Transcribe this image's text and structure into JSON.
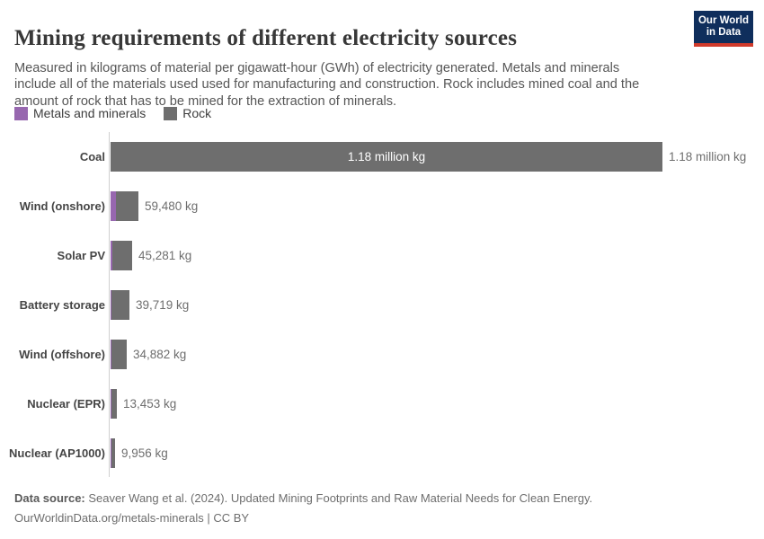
{
  "header": {
    "title": "Mining requirements of different electricity sources",
    "subtitle": "Measured in kilograms of material per gigawatt-hour (GWh) of electricity generated. Metals and minerals include all of the materials used used for manufacturing and construction. Rock includes mined coal and the amount of rock that has to be mined for the extraction of minerals.",
    "logo": {
      "line1": "Our World",
      "line2": "in Data",
      "bg": "#0f2e5c",
      "stripe": "#d03a2b"
    }
  },
  "legend": [
    {
      "label": "Metals and minerals",
      "color": "#9767af"
    },
    {
      "label": "Rock",
      "color": "#6e6e6e"
    }
  ],
  "chart_data": {
    "type": "bar",
    "orientation": "horizontal",
    "title": "Mining requirements of different electricity sources",
    "unit": "kg of material per GWh",
    "xlim": [
      0,
      1180000
    ],
    "grid": false,
    "legend_position": "top-left",
    "colors": {
      "metals": "#9767af",
      "rock": "#6e6e6e"
    },
    "categories": [
      "Coal",
      "Wind (onshore)",
      "Solar PV",
      "Battery storage",
      "Wind (offshore)",
      "Nuclear (EPR)",
      "Nuclear (AP1000)"
    ],
    "series": [
      {
        "name": "Metals and minerals",
        "values_est": [
          0,
          11500,
          2900,
          1900,
          1900,
          1900,
          1900
        ]
      },
      {
        "name": "Rock",
        "values_est": [
          1180000,
          47980,
          42381,
          37819,
          32982,
          11553,
          8056
        ]
      }
    ],
    "rows": [
      {
        "label": "Coal",
        "total_kg": 1180000,
        "metals_kg_est": 0,
        "value_label": "1.18 million kg",
        "inside_label": "1.18 million kg"
      },
      {
        "label": "Wind (onshore)",
        "total_kg": 59480,
        "metals_kg_est": 11500,
        "value_label": "59,480 kg",
        "inside_label": ""
      },
      {
        "label": "Solar PV",
        "total_kg": 45281,
        "metals_kg_est": 2900,
        "value_label": "45,281 kg",
        "inside_label": ""
      },
      {
        "label": "Battery storage",
        "total_kg": 39719,
        "metals_kg_est": 1900,
        "value_label": "39,719 kg",
        "inside_label": ""
      },
      {
        "label": "Wind (offshore)",
        "total_kg": 34882,
        "metals_kg_est": 1900,
        "value_label": "34,882 kg",
        "inside_label": ""
      },
      {
        "label": "Nuclear (EPR)",
        "total_kg": 13453,
        "metals_kg_est": 1900,
        "value_label": "13,453 kg",
        "inside_label": ""
      },
      {
        "label": "Nuclear (AP1000)",
        "total_kg": 9956,
        "metals_kg_est": 1900,
        "value_label": "9,956 kg",
        "inside_label": ""
      }
    ]
  },
  "footer": {
    "source_prefix": "Data source:",
    "source_text": " Seaver Wang et al. (2024). Updated Mining Footprints and Raw Material Needs for Clean Energy.",
    "license_line": "OurWorldinData.org/metals-minerals | CC BY"
  }
}
